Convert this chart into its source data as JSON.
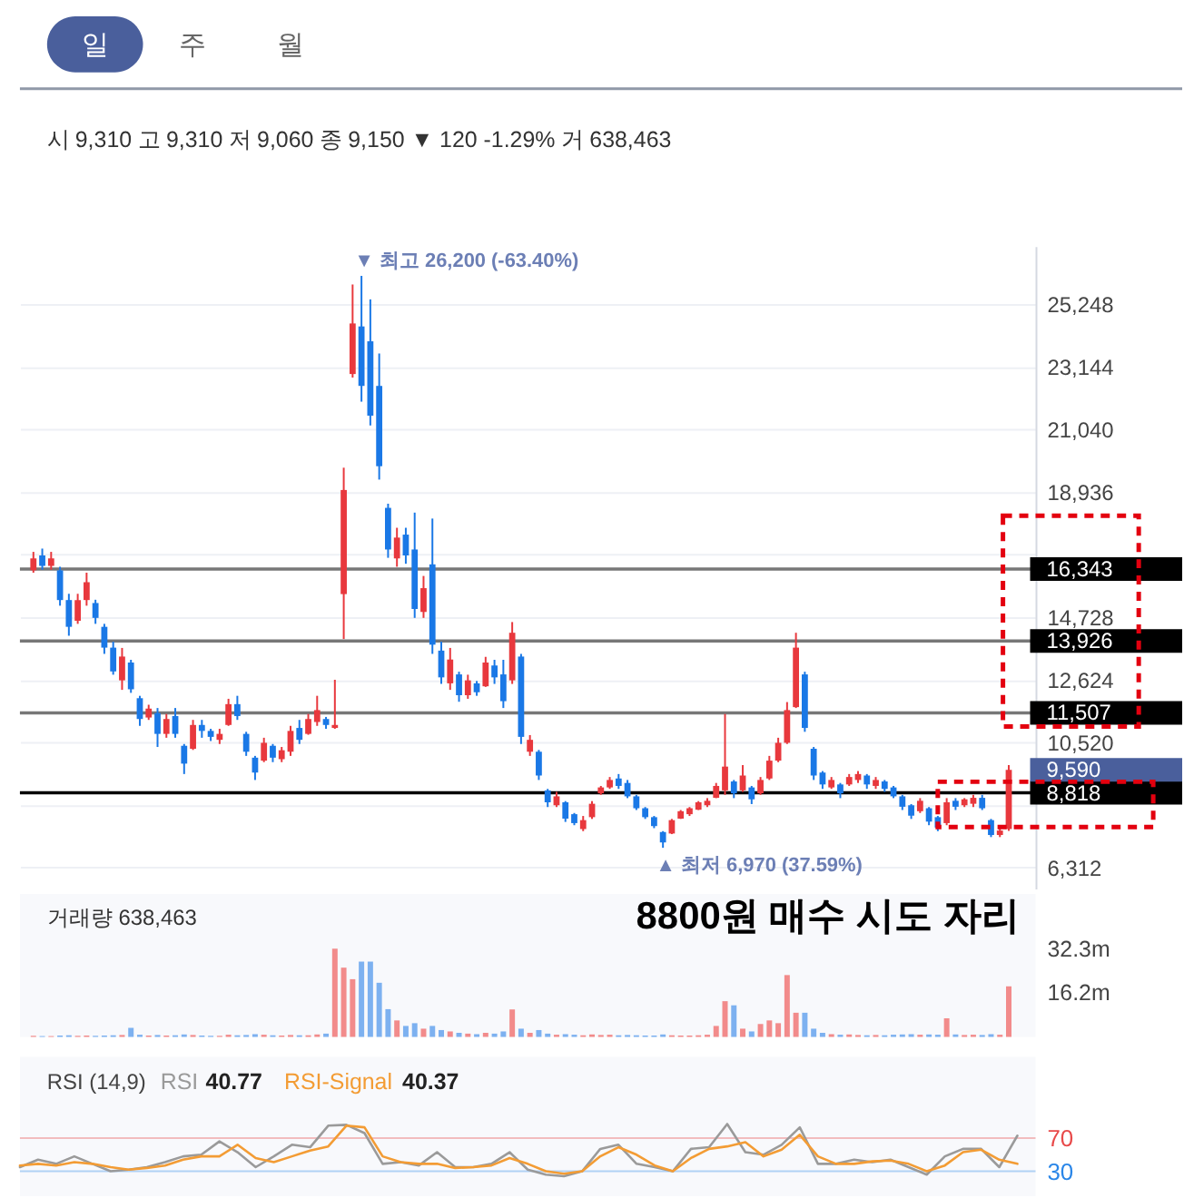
{
  "chart_data": [
    {
      "type": "candlestick",
      "subtitle": "시 9,310 고 9,310 저 9,060 종 9,150 ▼ 120 -1.29% 거 638,463",
      "categories": [
        null,
        null,
        null,
        null,
        null,
        null,
        null,
        null,
        null,
        null,
        null,
        null,
        null,
        null,
        null,
        null,
        null,
        null,
        null,
        null,
        null,
        null,
        null,
        null,
        null,
        null,
        null,
        null,
        null,
        null,
        null,
        null,
        null,
        null,
        null,
        null,
        null,
        null,
        null,
        null,
        null,
        null,
        null,
        null,
        null,
        null,
        null,
        null,
        null,
        null,
        null,
        null,
        null,
        null,
        null,
        null,
        null,
        null,
        null,
        null,
        null,
        null,
        null,
        null,
        null,
        null,
        null,
        null,
        null,
        null,
        null,
        null,
        null,
        null,
        null,
        null,
        null,
        null,
        null,
        null,
        null,
        null,
        null,
        null,
        null,
        null,
        null,
        null,
        null,
        null,
        null,
        null,
        null,
        null,
        null,
        null,
        null,
        null,
        null,
        null,
        null,
        null,
        null,
        null,
        null,
        null,
        null,
        null,
        null,
        null,
        null
      ],
      "ohlc": [
        [
          16300,
          16920,
          16220,
          16700
        ],
        [
          16800,
          17030,
          16320,
          16450
        ],
        [
          16450,
          16920,
          16320,
          16700
        ],
        [
          16300,
          16420,
          15110,
          15300
        ],
        [
          15300,
          15510,
          14100,
          14400
        ],
        [
          14600,
          15510,
          14500,
          15300
        ],
        [
          15300,
          16220,
          15110,
          15900
        ],
        [
          15200,
          15310,
          14500,
          14700
        ],
        [
          14400,
          14500,
          13490,
          13700
        ],
        [
          13700,
          13900,
          12790,
          12900
        ],
        [
          12600,
          13690,
          12280,
          13400
        ],
        [
          13200,
          13290,
          12180,
          12300
        ],
        [
          12000,
          12080,
          11070,
          11300
        ],
        [
          11350,
          11780,
          11270,
          11650
        ],
        [
          11500,
          11670,
          10360,
          10800
        ],
        [
          10800,
          11470,
          10670,
          11300
        ],
        [
          11400,
          11670,
          10670,
          10800
        ],
        [
          10400,
          10460,
          9450,
          9800
        ],
        [
          10300,
          11270,
          10260,
          11100
        ],
        [
          11100,
          11270,
          10670,
          10900
        ],
        [
          10900,
          10970,
          10560,
          10700
        ],
        [
          10600,
          10970,
          10460,
          10800
        ],
        [
          11100,
          11980,
          11070,
          11800
        ],
        [
          11800,
          12080,
          11270,
          11400
        ],
        [
          10800,
          10870,
          10060,
          10200
        ],
        [
          10000,
          10060,
          9250,
          9500
        ],
        [
          9900,
          10670,
          9850,
          10500
        ],
        [
          10400,
          10460,
          9850,
          10000
        ],
        [
          9950,
          10360,
          9850,
          10250
        ],
        [
          10200,
          11070,
          10060,
          10900
        ],
        [
          11000,
          11270,
          10460,
          10600
        ],
        [
          10800,
          11470,
          10770,
          11300
        ],
        [
          11200,
          12080,
          11070,
          11600
        ],
        [
          11300,
          11370,
          10970,
          11100
        ],
        [
          11000,
          12620,
          10970,
          11100
        ],
        [
          15500,
          19750,
          13990,
          19000
        ],
        [
          22900,
          25910,
          22780,
          24600
        ],
        [
          24500,
          26200,
          21970,
          22500
        ],
        [
          24000,
          25410,
          21170,
          21500
        ],
        [
          22500,
          23590,
          19350,
          19800
        ],
        [
          18400,
          18540,
          16720,
          17000
        ],
        [
          16700,
          17730,
          16420,
          17400
        ],
        [
          17500,
          17730,
          16520,
          16800
        ],
        [
          17000,
          18240,
          14700,
          15000
        ],
        [
          14900,
          16110,
          14700,
          15700
        ],
        [
          16500,
          18040,
          13490,
          13800
        ],
        [
          13600,
          13900,
          12480,
          12700
        ],
        [
          12500,
          13690,
          12280,
          13300
        ],
        [
          12800,
          12890,
          11880,
          12100
        ],
        [
          12100,
          12790,
          11980,
          12600
        ],
        [
          12500,
          12580,
          12080,
          12200
        ],
        [
          12400,
          13390,
          12380,
          13200
        ],
        [
          13100,
          13290,
          12480,
          12700
        ],
        [
          12800,
          13290,
          11670,
          11900
        ],
        [
          12600,
          14560,
          12480,
          14200
        ],
        [
          13400,
          13490,
          10460,
          10700
        ],
        [
          10200,
          10760,
          10060,
          10600
        ],
        [
          10200,
          10260,
          9250,
          9400
        ],
        [
          8900,
          8950,
          8340,
          8500
        ],
        [
          8400,
          8850,
          8340,
          8700
        ],
        [
          8500,
          8540,
          7840,
          7950
        ],
        [
          8100,
          8140,
          7730,
          7800
        ],
        [
          7600,
          8040,
          7530,
          7900
        ],
        [
          8000,
          8540,
          7940,
          8450
        ],
        [
          8800,
          9050,
          8750,
          9000
        ],
        [
          9000,
          9350,
          8950,
          9250
        ],
        [
          9300,
          9450,
          8950,
          9050
        ],
        [
          9150,
          9250,
          8640,
          8700
        ],
        [
          8700,
          8750,
          8240,
          8300
        ],
        [
          8300,
          8340,
          7940,
          8000
        ],
        [
          8000,
          8040,
          7630,
          7700
        ],
        [
          7500,
          7530,
          6970,
          7150
        ],
        [
          7450,
          7940,
          7430,
          7900
        ],
        [
          7950,
          8240,
          7940,
          8200
        ],
        [
          8100,
          8340,
          8040,
          8300
        ],
        [
          8250,
          8540,
          8240,
          8500
        ],
        [
          8400,
          8640,
          8340,
          8550
        ],
        [
          8650,
          9150,
          8640,
          9050
        ],
        [
          8900,
          11470,
          8750,
          9700
        ],
        [
          9200,
          9250,
          8640,
          8800
        ],
        [
          8900,
          9750,
          8850,
          9400
        ],
        [
          9000,
          9050,
          8440,
          8600
        ],
        [
          8800,
          9350,
          8750,
          9250
        ],
        [
          9300,
          10060,
          9250,
          9900
        ],
        [
          9900,
          10670,
          9850,
          10500
        ],
        [
          10500,
          11870,
          10460,
          11600
        ],
        [
          11700,
          14200,
          11670,
          13700
        ],
        [
          12800,
          12890,
          10870,
          11000
        ],
        [
          10300,
          10360,
          9250,
          9400
        ],
        [
          9500,
          9550,
          8950,
          9100
        ],
        [
          9000,
          9350,
          8950,
          9250
        ],
        [
          9100,
          9150,
          8640,
          8800
        ],
        [
          9100,
          9450,
          9050,
          9350
        ],
        [
          9250,
          9550,
          9150,
          9450
        ],
        [
          9400,
          9450,
          8950,
          9100
        ],
        [
          9050,
          9350,
          8950,
          9250
        ],
        [
          9200,
          9250,
          8850,
          8950
        ],
        [
          9000,
          9050,
          8640,
          8700
        ],
        [
          8700,
          8750,
          8240,
          8350
        ],
        [
          8400,
          8440,
          7940,
          8050
        ],
        [
          8200,
          8640,
          8140,
          8550
        ],
        [
          8300,
          8340,
          7730,
          7850
        ],
        [
          8000,
          8040,
          7530,
          7650
        ],
        [
          7800,
          8640,
          7730,
          8500
        ],
        [
          8550,
          8640,
          8240,
          8350
        ],
        [
          8400,
          8640,
          8340,
          8600
        ],
        [
          8450,
          8750,
          8340,
          8650
        ],
        [
          8650,
          8750,
          8240,
          8300
        ],
        [
          7900,
          7940,
          7330,
          7400
        ],
        [
          7400,
          7630,
          7330,
          7550
        ],
        [
          7600,
          9750,
          7540,
          9590
        ]
      ],
      "colors": [
        "#e8383d",
        "#1a78e6",
        "#e8383d",
        "#1a78e6",
        "#1a78e6",
        "#e8383d",
        "#e8383d",
        "#1a78e6",
        "#1a78e6",
        "#1a78e6",
        "#e8383d",
        "#1a78e6",
        "#1a78e6",
        "#e8383d",
        "#1a78e6",
        "#e8383d",
        "#1a78e6",
        "#1a78e6",
        "#e8383d",
        "#1a78e6",
        "#1a78e6",
        "#e8383d",
        "#e8383d",
        "#1a78e6",
        "#1a78e6",
        "#1a78e6",
        "#e8383d",
        "#1a78e6",
        "#e8383d",
        "#e8383d",
        "#1a78e6",
        "#e8383d",
        "#e8383d",
        "#1a78e6",
        "#e8383d",
        "#e8383d",
        "#e8383d",
        "#1a78e6",
        "#1a78e6",
        "#1a78e6",
        "#1a78e6",
        "#e8383d",
        "#1a78e6",
        "#1a78e6",
        "#e8383d",
        "#1a78e6",
        "#1a78e6",
        "#e8383d",
        "#1a78e6",
        "#e8383d",
        "#1a78e6",
        "#e8383d",
        "#1a78e6",
        "#1a78e6",
        "#e8383d",
        "#1a78e6",
        "#e8383d",
        "#1a78e6",
        "#1a78e6",
        "#e8383d",
        "#1a78e6",
        "#1a78e6",
        "#e8383d",
        "#e8383d",
        "#e8383d",
        "#e8383d",
        "#1a78e6",
        "#1a78e6",
        "#1a78e6",
        "#1a78e6",
        "#1a78e6",
        "#1a78e6",
        "#e8383d",
        "#e8383d",
        "#e8383d",
        "#e8383d",
        "#e8383d",
        "#e8383d",
        "#e8383d",
        "#1a78e6",
        "#e8383d",
        "#1a78e6",
        "#e8383d",
        "#e8383d",
        "#e8383d",
        "#e8383d",
        "#e8383d",
        "#1a78e6",
        "#1a78e6",
        "#1a78e6",
        "#e8383d",
        "#1a78e6",
        "#e8383d",
        "#e8383d",
        "#1a78e6",
        "#e8383d",
        "#1a78e6",
        "#1a78e6",
        "#1a78e6",
        "#1a78e6",
        "#e8383d",
        "#1a78e6",
        "#1a78e6",
        "#e8383d",
        "#1a78e6",
        "#e8383d",
        "#e8383d",
        "#1a78e6",
        "#1a78e6",
        "#e8383d",
        "#e8383d"
      ],
      "ylim": [
        5600,
        27200
      ],
      "yticks": [
        {
          "value": 6312,
          "label": "6,312"
        },
        {
          "value": 8416,
          "label": null
        },
        {
          "value": 10520,
          "label": "10,520"
        },
        {
          "value": 12624,
          "label": "12,624"
        },
        {
          "value": 14728,
          "label": "14,728"
        },
        {
          "value": 16832,
          "label": null
        },
        {
          "value": 18936,
          "label": "18,936"
        },
        {
          "value": 21040,
          "label": "21,040"
        },
        {
          "value": 23144,
          "label": "23,144"
        },
        {
          "value": 25248,
          "label": "25,248"
        }
      ],
      "grid": "y",
      "tick_labels": "y",
      "ref_lines": [
        {
          "axis": "y",
          "value": 16343,
          "label": "16,343",
          "color": "#777777"
        },
        {
          "axis": "y",
          "value": 13926,
          "label": "13,926",
          "color": "#777777"
        },
        {
          "axis": "y",
          "value": 11507,
          "label": "11,507",
          "color": "#777777"
        },
        {
          "axis": "y",
          "value": 8818,
          "label": "8,818",
          "color": "#000000"
        }
      ],
      "annotations": [
        "일",
        "주",
        "월",
        "▼ 최고 26,200 (-63.40%)",
        "▲ 최저 6,970 (37.59%)",
        "9,590",
        "8800원 매수 시도 자리"
      ]
    },
    {
      "type": "bar",
      "title": "거래량 638,463",
      "categories": [
        null,
        null,
        null,
        null,
        null,
        null,
        null,
        null,
        null,
        null,
        null,
        null,
        null,
        null,
        null,
        null,
        null,
        null,
        null,
        null,
        null,
        null,
        null,
        null,
        null,
        null,
        null,
        null,
        null,
        null,
        null,
        null,
        null,
        null,
        null,
        null,
        null,
        null,
        null,
        null,
        null,
        null,
        null,
        null,
        null,
        null,
        null,
        null,
        null,
        null,
        null,
        null,
        null,
        null,
        null,
        null,
        null,
        null,
        null,
        null,
        null,
        null,
        null,
        null,
        null,
        null,
        null,
        null,
        null,
        null,
        null,
        null,
        null,
        null,
        null,
        null,
        null,
        null,
        null,
        null,
        null,
        null,
        null,
        null,
        null,
        null,
        null,
        null,
        null,
        null,
        null,
        null,
        null,
        null,
        null,
        null,
        null,
        null,
        null,
        null,
        null,
        null,
        null,
        null,
        null,
        null,
        null,
        null,
        null,
        null,
        null
      ],
      "values": [
        0.4,
        0.3,
        0.3,
        0.5,
        0.6,
        0.4,
        0.5,
        0.4,
        0.5,
        0.6,
        0.7,
        3.3,
        0.8,
        0.5,
        0.7,
        0.5,
        0.6,
        0.9,
        0.7,
        0.5,
        0.4,
        0.4,
        0.8,
        0.6,
        0.7,
        1.0,
        0.8,
        0.6,
        0.5,
        0.7,
        0.6,
        0.6,
        0.9,
        1.2,
        32.1,
        25.2,
        21.0,
        27.4,
        27.4,
        19.7,
        10.1,
        6.0,
        4.0,
        5.0,
        3.0,
        4.0,
        2.5,
        2.0,
        1.5,
        1.2,
        1.0,
        1.5,
        1.2,
        2.0,
        10.0,
        3.0,
        1.5,
        2.5,
        1.2,
        0.8,
        1.0,
        0.8,
        0.6,
        0.9,
        0.7,
        0.8,
        0.6,
        0.7,
        0.6,
        0.5,
        0.5,
        0.9,
        0.6,
        0.5,
        0.5,
        0.6,
        0.8,
        4.0,
        13.0,
        11.5,
        3.0,
        2.0,
        4.7,
        6.0,
        5.0,
        22.5,
        8.8,
        8.8,
        3.0,
        1.5,
        1.0,
        0.8,
        0.9,
        0.7,
        0.6,
        0.7,
        0.6,
        0.8,
        0.9,
        1.0,
        0.8,
        0.9,
        0.8,
        6.8,
        0.9,
        0.7,
        0.8,
        0.7,
        1.0,
        0.8,
        18.4
      ],
      "colors": [
        "#f28b8b",
        "#7db1f0",
        "#f28b8b",
        "#7db1f0",
        "#7db1f0",
        "#f28b8b",
        "#f28b8b",
        "#7db1f0",
        "#7db1f0",
        "#7db1f0",
        "#f28b8b",
        "#7db1f0",
        "#7db1f0",
        "#f28b8b",
        "#7db1f0",
        "#f28b8b",
        "#7db1f0",
        "#7db1f0",
        "#f28b8b",
        "#7db1f0",
        "#7db1f0",
        "#f28b8b",
        "#f28b8b",
        "#7db1f0",
        "#7db1f0",
        "#7db1f0",
        "#f28b8b",
        "#7db1f0",
        "#f28b8b",
        "#f28b8b",
        "#7db1f0",
        "#f28b8b",
        "#f28b8b",
        "#7db1f0",
        "#f28b8b",
        "#f28b8b",
        "#f28b8b",
        "#7db1f0",
        "#7db1f0",
        "#7db1f0",
        "#7db1f0",
        "#f28b8b",
        "#7db1f0",
        "#7db1f0",
        "#f28b8b",
        "#7db1f0",
        "#7db1f0",
        "#f28b8b",
        "#7db1f0",
        "#f28b8b",
        "#7db1f0",
        "#f28b8b",
        "#7db1f0",
        "#7db1f0",
        "#f28b8b",
        "#7db1f0",
        "#f28b8b",
        "#7db1f0",
        "#7db1f0",
        "#f28b8b",
        "#7db1f0",
        "#7db1f0",
        "#f28b8b",
        "#f28b8b",
        "#f28b8b",
        "#f28b8b",
        "#7db1f0",
        "#7db1f0",
        "#7db1f0",
        "#7db1f0",
        "#7db1f0",
        "#7db1f0",
        "#f28b8b",
        "#f28b8b",
        "#f28b8b",
        "#f28b8b",
        "#f28b8b",
        "#f28b8b",
        "#f28b8b",
        "#7db1f0",
        "#f28b8b",
        "#7db1f0",
        "#f28b8b",
        "#f28b8b",
        "#f28b8b",
        "#f28b8b",
        "#f28b8b",
        "#7db1f0",
        "#7db1f0",
        "#7db1f0",
        "#f28b8b",
        "#7db1f0",
        "#f28b8b",
        "#f28b8b",
        "#7db1f0",
        "#f28b8b",
        "#7db1f0",
        "#7db1f0",
        "#7db1f0",
        "#7db1f0",
        "#f28b8b",
        "#7db1f0",
        "#7db1f0",
        "#f28b8b",
        "#7db1f0",
        "#f28b8b",
        "#f28b8b",
        "#7db1f0",
        "#7db1f0",
        "#f28b8b",
        "#f28b8b"
      ],
      "ylim": [
        0,
        52
      ],
      "yticks": [
        {
          "value": 16.2,
          "label": "16.2m"
        },
        {
          "value": 32.3,
          "label": "32.3m"
        }
      ],
      "tick_labels": "y"
    },
    {
      "type": "line",
      "title": "RSI (14,9)",
      "categories": [
        null,
        null,
        null,
        null,
        null,
        null,
        null,
        null,
        null,
        null,
        null,
        null,
        null,
        null,
        null,
        null,
        null,
        null,
        null,
        null,
        null,
        null,
        null,
        null,
        null,
        null,
        null,
        null,
        null,
        null,
        null,
        null,
        null,
        null,
        null,
        null,
        null,
        null,
        null,
        null,
        null,
        null,
        null,
        null,
        null,
        null,
        null,
        null,
        null,
        null,
        null,
        null,
        null,
        null,
        null,
        null
      ],
      "series": [
        {
          "name": "RSI",
          "color": "#9a9a9a",
          "values": [
            35,
            44,
            39,
            48,
            39,
            30,
            32,
            35,
            41,
            48,
            50,
            66,
            53,
            35,
            48,
            62,
            59,
            85,
            86,
            76,
            39,
            41,
            37,
            53,
            35,
            35,
            39,
            53,
            32,
            26,
            24,
            30,
            57,
            62,
            39,
            35,
            30,
            57,
            59,
            87,
            53,
            50,
            62,
            83,
            39,
            39,
            44,
            41,
            44,
            35,
            26,
            48,
            57,
            57,
            35,
            73
          ]
        },
        {
          "name": "RSI-Signal",
          "color": "#f39c34",
          "values": [
            37,
            39,
            37,
            41,
            39,
            35,
            32,
            34,
            37,
            44,
            48,
            48,
            62,
            46,
            41,
            48,
            55,
            60,
            85,
            83,
            48,
            41,
            39,
            39,
            34,
            35,
            37,
            46,
            39,
            30,
            27,
            30,
            48,
            59,
            50,
            37,
            30,
            46,
            57,
            60,
            65,
            48,
            56,
            74,
            48,
            39,
            39,
            42,
            43,
            39,
            30,
            37,
            53,
            56,
            44,
            39
          ]
        }
      ],
      "ylim": [
        0,
        168
      ],
      "yticks": [
        30,
        70
      ],
      "ref_lines": [
        {
          "axis": "y",
          "value": 70,
          "color": "#e84a4a"
        },
        {
          "axis": "y",
          "value": 30,
          "color": "#2a86e8"
        }
      ],
      "legend": "top left",
      "annotations": [
        "40.77",
        "40.37"
      ],
      "tick_labels": "y"
    }
  ]
}
